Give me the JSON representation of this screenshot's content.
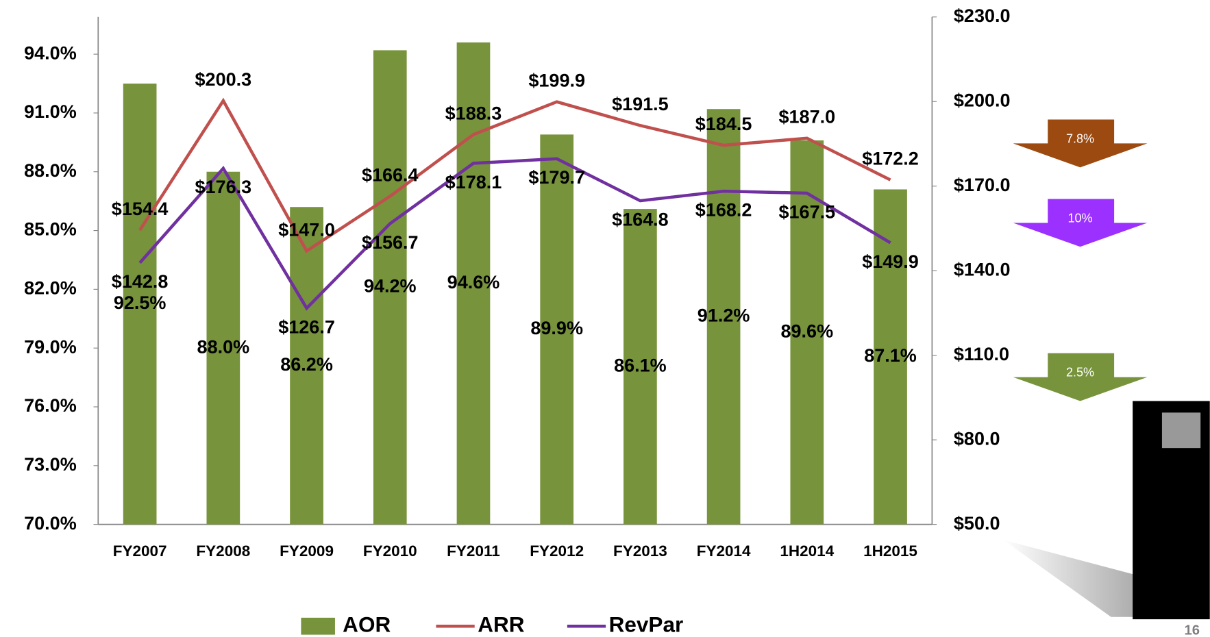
{
  "chart_data": {
    "type": "bar",
    "categories": [
      "FY2007",
      "FY2008",
      "FY2009",
      "FY2010",
      "FY2011",
      "FY2012",
      "FY2013",
      "FY2014",
      "1H2014",
      "1H2015"
    ],
    "ylim": [
      70,
      95.9
    ],
    "yticks": [
      {
        "value": 70,
        "label": "70.0%"
      },
      {
        "value": 73,
        "label": "73.0%"
      },
      {
        "value": 76,
        "label": "76.0%"
      },
      {
        "value": 79,
        "label": "79.0%"
      },
      {
        "value": 82,
        "label": "82.0%"
      },
      {
        "value": 85,
        "label": "85.0%"
      },
      {
        "value": 88,
        "label": "88.0%"
      },
      {
        "value": 91,
        "label": "91.0%"
      },
      {
        "value": 94,
        "label": "94.0%"
      }
    ],
    "y2lim": [
      50,
      230
    ],
    "y2ticks": [
      {
        "value": 50,
        "label": "$50.0"
      },
      {
        "value": 80,
        "label": "$80.0"
      },
      {
        "value": 110,
        "label": "$110.0"
      },
      {
        "value": 140,
        "label": "$140.0"
      },
      {
        "value": 170,
        "label": "$170.0"
      },
      {
        "value": 200,
        "label": "$200.0"
      },
      {
        "value": 230,
        "label": "$230.0"
      }
    ],
    "series": [
      {
        "name": "AOR",
        "type": "bar",
        "color": "#77933c",
        "values": [
          92.5,
          88.0,
          86.2,
          94.2,
          94.6,
          89.9,
          86.1,
          91.2,
          89.6,
          87.1
        ],
        "value_labels": [
          "92.5%",
          "88.0%",
          "86.2%",
          "94.2%",
          "94.6%",
          "89.9%",
          "86.1%",
          "91.2%",
          "89.6%",
          "87.1%"
        ]
      },
      {
        "name": "ARR",
        "type": "line",
        "axis": "y2",
        "color": "#c0504d",
        "values": [
          154.4,
          200.3,
          147.0,
          166.4,
          188.3,
          199.9,
          191.5,
          184.5,
          187.0,
          172.2
        ],
        "value_labels": [
          "$154.4",
          "$200.3",
          "$147.0",
          "$166.4",
          "$188.3",
          "$199.9",
          "$191.5",
          "$184.5",
          "$187.0",
          "$172.2"
        ]
      },
      {
        "name": "RevPar",
        "type": "line",
        "axis": "y2",
        "color": "#7030a0",
        "values": [
          142.8,
          176.3,
          126.7,
          156.7,
          178.1,
          179.7,
          164.8,
          168.2,
          167.5,
          149.9
        ],
        "value_labels": [
          "$142.8",
          "$176.3",
          "$126.7",
          "$156.7",
          "$178.1",
          "$179.7",
          "$164.8",
          "$168.2",
          "$167.5",
          "$149.9"
        ]
      }
    ],
    "annotations": [
      {
        "text": "7.8%",
        "color": "#9c4a0f"
      },
      {
        "text": "10%",
        "color": "#9b30ff"
      },
      {
        "text": "2.5%",
        "color": "#77933c"
      }
    ],
    "page_number": "16"
  }
}
